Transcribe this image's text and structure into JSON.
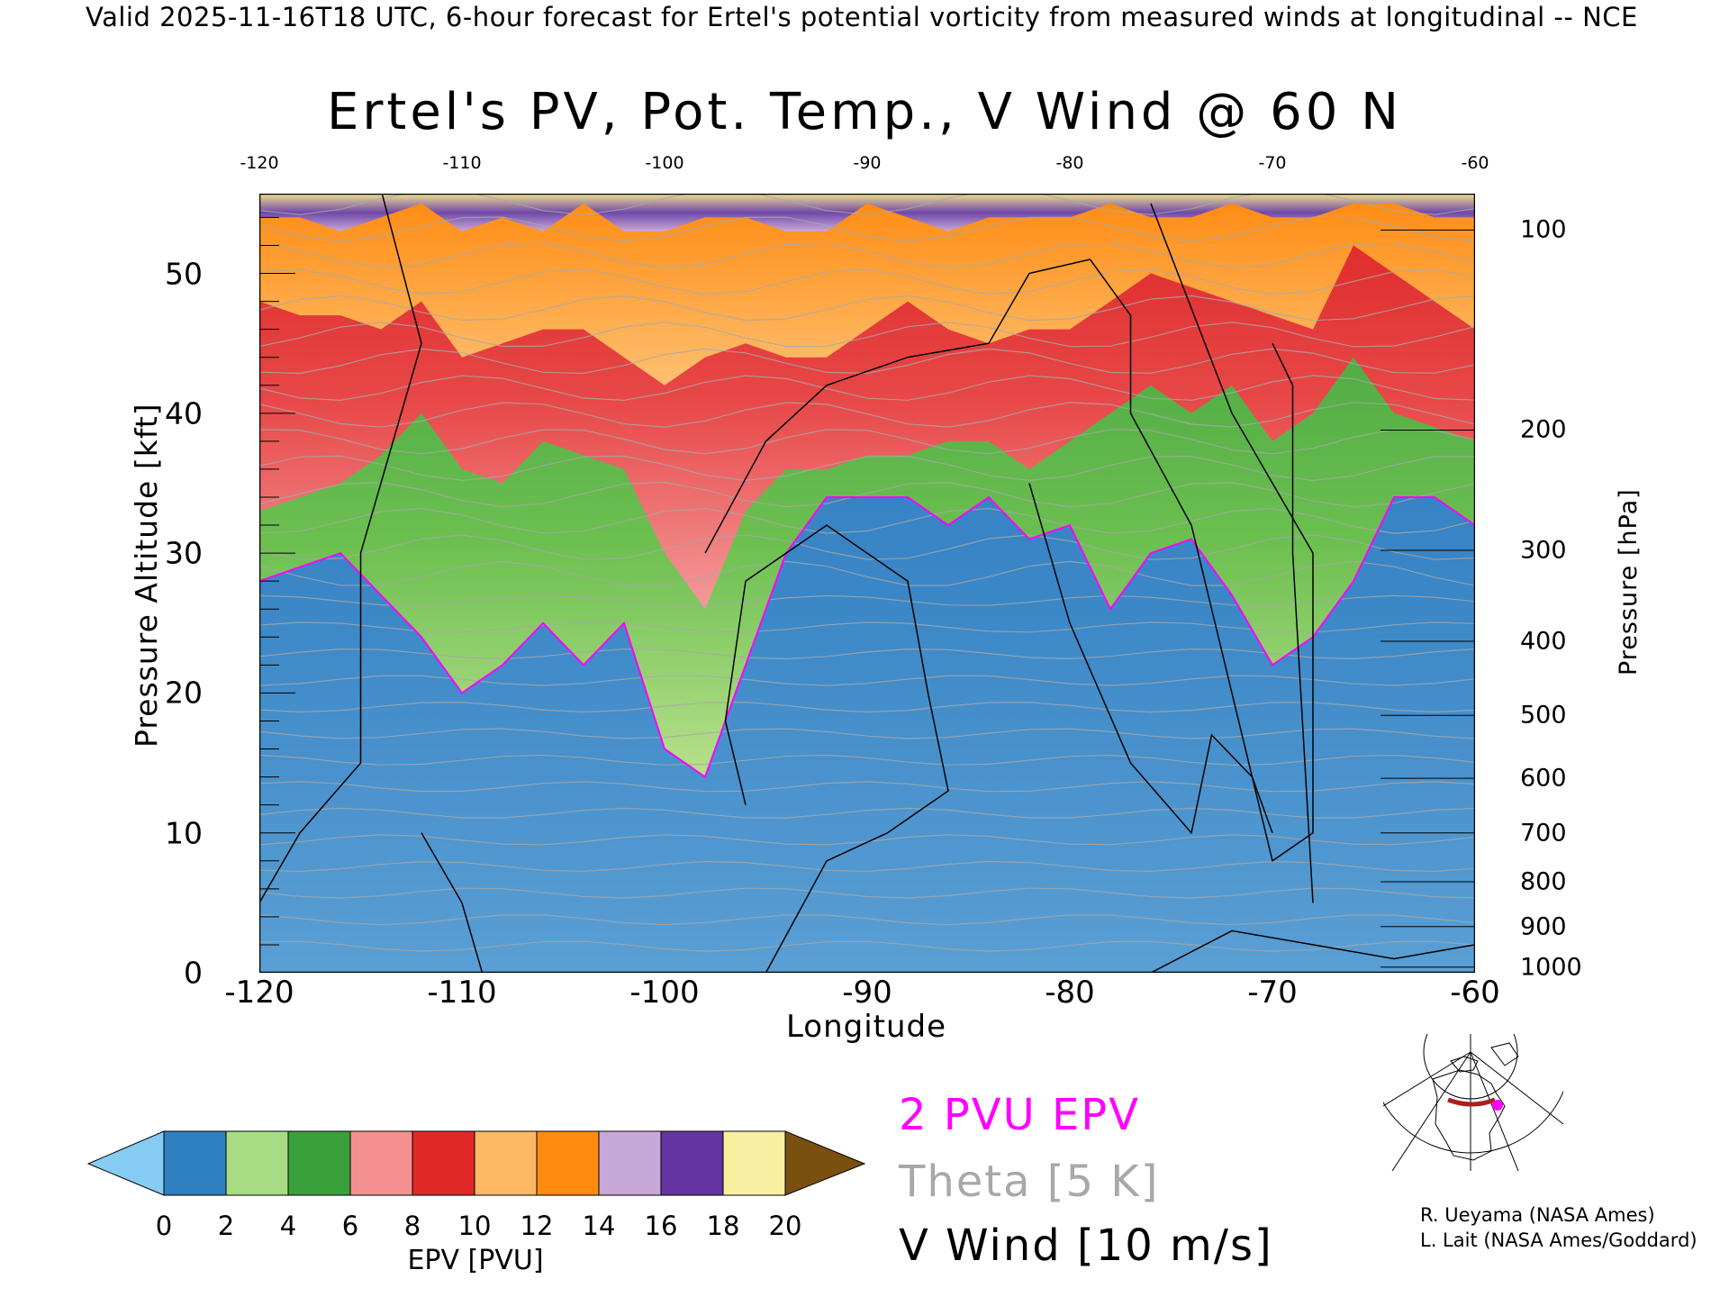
{
  "header": "Valid 2025-11-16T18 UTC, 6-hour forecast for Ertel's potential vorticity from measured winds at longitudinal -- NCE",
  "chart_data": {
    "type": "heatmap",
    "title": "Ertel's PV, Pot. Temp., V Wind @ 60 N",
    "xlabel": "Longitude",
    "ylabel": "Pressure Altitude [kft]",
    "y2label": "Pressure [hPa]",
    "xlim": [
      -120,
      -60
    ],
    "ylim": [
      0,
      55.7
    ],
    "x_ticks": [
      "-120",
      "-110",
      "-100",
      "-90",
      "-80",
      "-70",
      "-60"
    ],
    "x_tick_values": [
      -120,
      -110,
      -100,
      -90,
      -80,
      -70,
      -60
    ],
    "top_ticks": [
      "-120",
      "-110",
      "-100",
      "-90",
      "-80",
      "-70",
      "-60"
    ],
    "y_ticks": [
      "0",
      "10",
      "20",
      "30",
      "40",
      "50"
    ],
    "y_tick_values": [
      0,
      10,
      20,
      30,
      40,
      50
    ],
    "pressure_ticks": [
      {
        "label": "100",
        "kft": 53.1
      },
      {
        "label": "200",
        "kft": 38.8
      },
      {
        "label": "300",
        "kft": 30.2
      },
      {
        "label": "400",
        "kft": 23.7
      },
      {
        "label": "500",
        "kft": 18.4
      },
      {
        "label": "600",
        "kft": 13.9
      },
      {
        "label": "700",
        "kft": 10.0
      },
      {
        "label": "800",
        "kft": 6.5
      },
      {
        "label": "900",
        "kft": 3.3
      },
      {
        "label": "1000",
        "kft": 0.4
      }
    ],
    "epv_contours_kft": {
      "lon": [
        -120,
        -118,
        -116,
        -114,
        -112,
        -110,
        -108,
        -106,
        -104,
        -102,
        -100,
        -98,
        -96,
        -94,
        -92,
        -90,
        -88,
        -86,
        -84,
        -82,
        -80,
        -78,
        -76,
        -74,
        -72,
        -70,
        -68,
        -66,
        -64,
        -62,
        -60
      ],
      "pv2": [
        28,
        29,
        30,
        27,
        24,
        20,
        22,
        25,
        22,
        25,
        16,
        14,
        22,
        30,
        34,
        34,
        34,
        32,
        34,
        31,
        32,
        26,
        30,
        31,
        27,
        22,
        24,
        28,
        34,
        34,
        32
      ],
      "pv6": [
        33,
        34,
        35,
        37,
        40,
        36,
        35,
        38,
        37,
        36,
        30,
        26,
        33,
        36,
        36,
        37,
        37,
        38,
        38,
        36,
        38,
        40,
        42,
        40,
        42,
        38,
        40,
        44,
        40,
        39,
        38
      ],
      "pv10": [
        48,
        47,
        47,
        46,
        48,
        44,
        45,
        46,
        46,
        44,
        42,
        44,
        45,
        44,
        44,
        46,
        48,
        46,
        45,
        46,
        46,
        48,
        50,
        49,
        48,
        47,
        46,
        52,
        50,
        48,
        46
      ],
      "pv14": [
        54,
        54,
        53,
        54,
        55,
        53,
        54,
        53,
        55,
        53,
        53,
        54,
        54,
        53,
        53,
        55,
        54,
        53,
        54,
        54,
        54,
        55,
        54,
        54,
        55,
        54,
        54,
        55,
        55,
        54,
        54
      ]
    },
    "colorbar": {
      "label": "EPV [PVU]",
      "ticks": [
        "0",
        "2",
        "4",
        "6",
        "8",
        "10",
        "12",
        "14",
        "16",
        "18",
        "20"
      ],
      "colors": [
        "#2f80c0",
        "#a8dc84",
        "#3aa03c",
        "#f59090",
        "#e02828",
        "#ffb864",
        "#ff8a10",
        "#c8a8d8",
        "#6434a0",
        "#f8f0a0"
      ],
      "under_color": "#86ccf2",
      "over_color": "#7a5010"
    }
  },
  "legend": {
    "pv": "2 PVU EPV",
    "theta": "Theta [5 K]",
    "wind": "V Wind [10 m/s]",
    "pv_color": "#ff00ff",
    "theta_color": "#a8a8a8"
  },
  "credits": [
    "R. Ueyama (NASA Ames)",
    "L. Lait (NASA Ames/Goddard)"
  ]
}
